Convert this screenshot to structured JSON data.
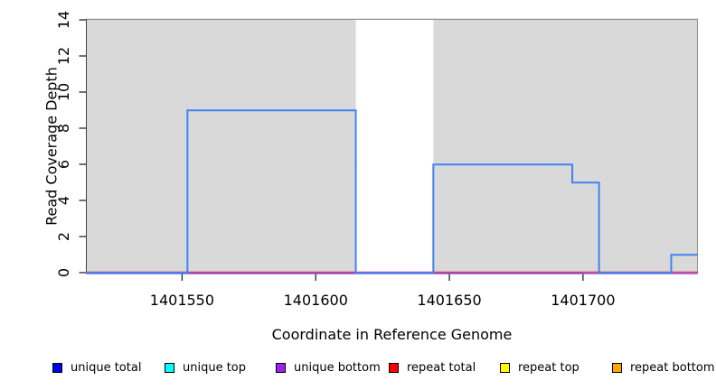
{
  "chart_data": {
    "type": "line",
    "subtype": "step-coverage",
    "title": "",
    "xlabel": "Coordinate in Reference Genome",
    "ylabel": "Read Coverage Depth",
    "xlim": [
      1401514,
      1401743
    ],
    "ylim": [
      0,
      14
    ],
    "x_ticks": [
      1401550,
      1401600,
      1401650,
      1401700
    ],
    "y_ticks": [
      0,
      2,
      4,
      6,
      8,
      10,
      12,
      14
    ],
    "grid": false,
    "background_regions": {
      "name": "repeat-region-shading",
      "fill": "#d9d9d9",
      "border": "#909090",
      "intervals": [
        [
          1401514,
          1401615
        ],
        [
          1401644,
          1401743
        ]
      ]
    },
    "series": [
      {
        "name": "unique total",
        "color": "#4183f2",
        "points": [
          [
            1401514,
            0
          ],
          [
            1401552,
            0
          ],
          [
            1401552,
            9
          ],
          [
            1401615,
            9
          ],
          [
            1401615,
            0
          ],
          [
            1401644,
            0
          ],
          [
            1401644,
            6
          ],
          [
            1401696,
            6
          ],
          [
            1401696,
            5
          ],
          [
            1401706,
            5
          ],
          [
            1401706,
            0
          ],
          [
            1401733,
            0
          ],
          [
            1401733,
            1
          ],
          [
            1401743,
            1
          ]
        ]
      },
      {
        "name": "repeat total",
        "color": "#e03a60",
        "points": [
          [
            1401514,
            0
          ],
          [
            1401743,
            0
          ]
        ]
      },
      {
        "name": "unique bottom",
        "color": "#8e52ee",
        "points": [
          [
            1401514,
            0
          ],
          [
            1401743,
            0
          ]
        ]
      }
    ],
    "legend": {
      "position": "bottom",
      "entries": [
        {
          "label": "unique total",
          "color": "#0000ee"
        },
        {
          "label": "unique top",
          "color": "#00ffff"
        },
        {
          "label": "unique bottom",
          "color": "#a020f0"
        },
        {
          "label": "repeat total",
          "color": "#ff0000"
        },
        {
          "label": "repeat top",
          "color": "#ffff00"
        },
        {
          "label": "repeat bottom",
          "color": "#ffa500"
        }
      ]
    }
  }
}
